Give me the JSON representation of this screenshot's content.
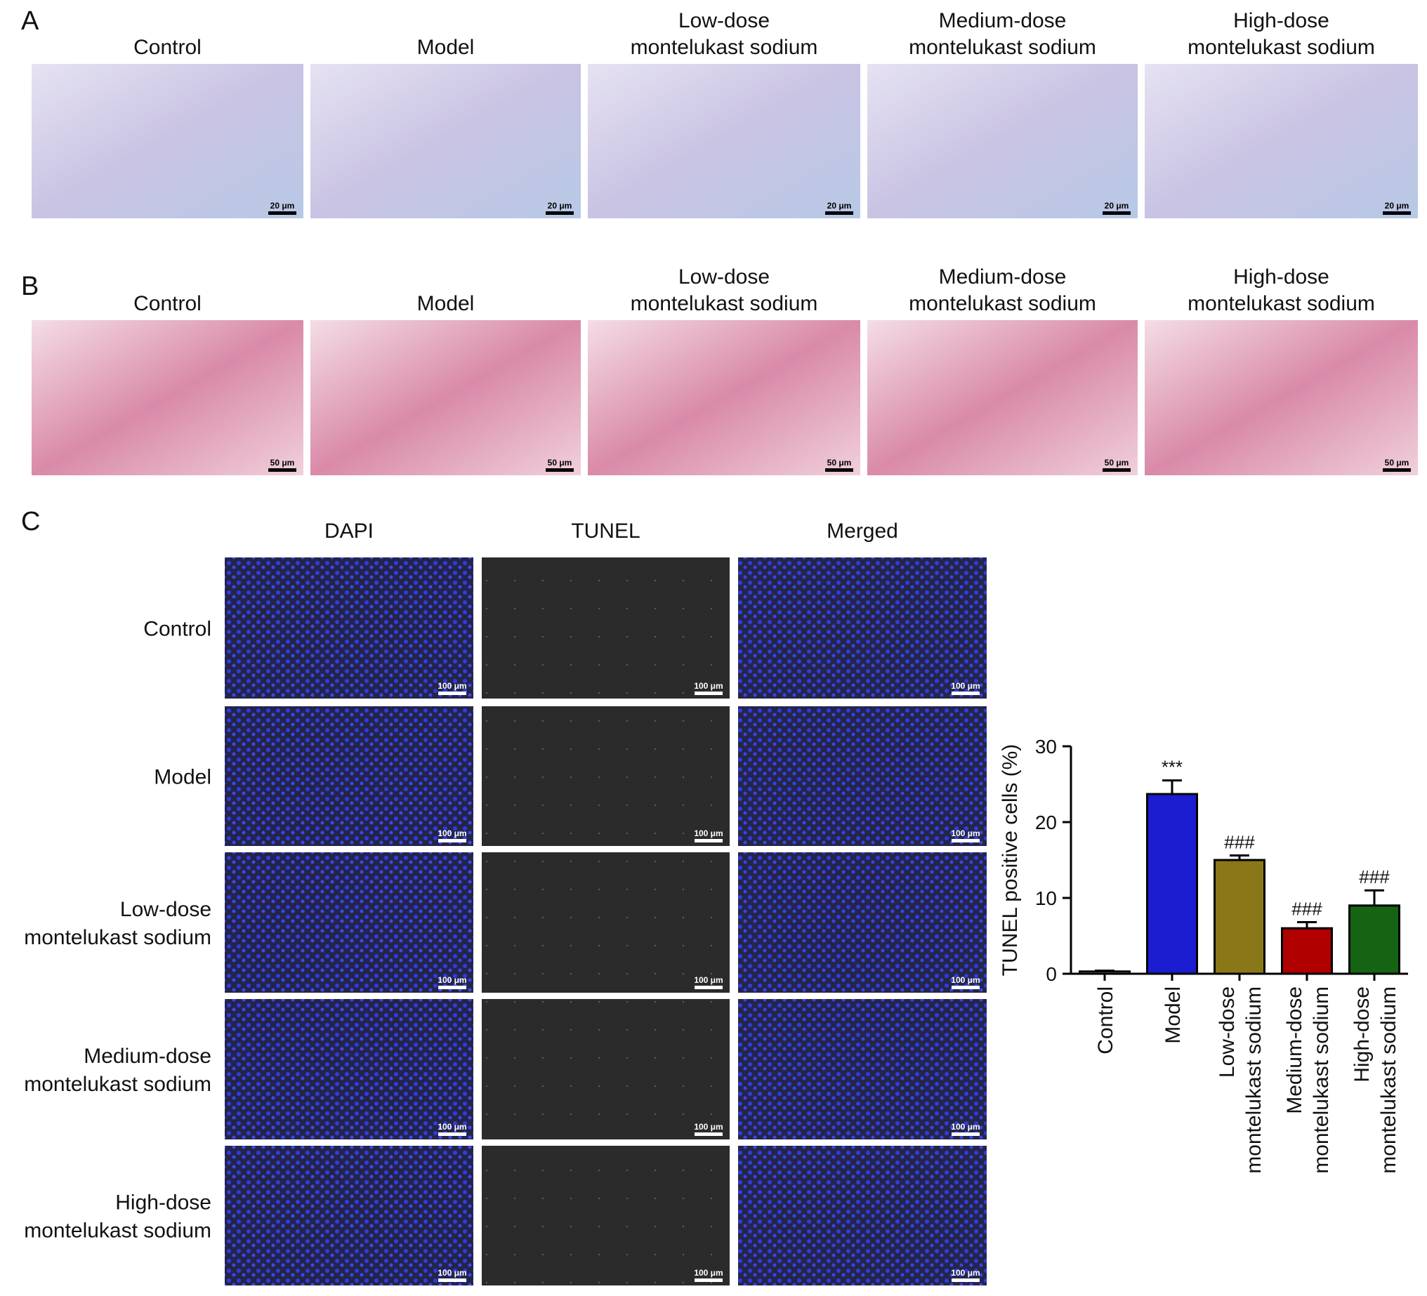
{
  "panel_a": {
    "label": "A",
    "columns": [
      [
        "Control"
      ],
      [
        "Model"
      ],
      [
        "Low-dose",
        "montelukast sodium"
      ],
      [
        "Medium-dose",
        "montelukast sodium"
      ],
      [
        "High-dose",
        "montelukast sodium"
      ]
    ],
    "scale_bar": "20 μm"
  },
  "panel_b": {
    "label": "B",
    "columns": [
      [
        "Control"
      ],
      [
        "Model"
      ],
      [
        "Low-dose",
        "montelukast sodium"
      ],
      [
        "Medium-dose",
        "montelukast sodium"
      ],
      [
        "High-dose",
        "montelukast sodium"
      ]
    ],
    "scale_bar": "50 μm"
  },
  "panel_c": {
    "label": "C",
    "columns": [
      "DAPI",
      "TUNEL",
      "Merged"
    ],
    "rows": [
      [
        "Control"
      ],
      [
        "Model"
      ],
      [
        "Low-dose",
        "montelukast sodium"
      ],
      [
        "Medium-dose",
        "montelukast sodium"
      ],
      [
        "High-dose",
        "montelukast sodium"
      ]
    ],
    "scale_bar": "100 μm"
  },
  "chart_data": {
    "type": "bar",
    "ylabel": "TUNEL positive cells (%)",
    "categories": [
      [
        "Control"
      ],
      [
        "Model"
      ],
      [
        "Low-dose",
        "montelukast sodium"
      ],
      [
        "Medium-dose",
        "montelukast sodium"
      ],
      [
        "High-dose",
        "montelukast sodium"
      ]
    ],
    "values": [
      0.3,
      23.7,
      15.0,
      6.0,
      9.0
    ],
    "errors": [
      0.1,
      1.8,
      0.6,
      0.8,
      2.0
    ],
    "colors": [
      "#ffffff",
      "#1c1cd0",
      "#8a7818",
      "#b00000",
      "#146414"
    ],
    "annotations": [
      null,
      "***",
      "###",
      "###",
      "###"
    ],
    "ylim": [
      0,
      30
    ],
    "yticks": [
      0,
      10,
      20,
      30
    ]
  }
}
